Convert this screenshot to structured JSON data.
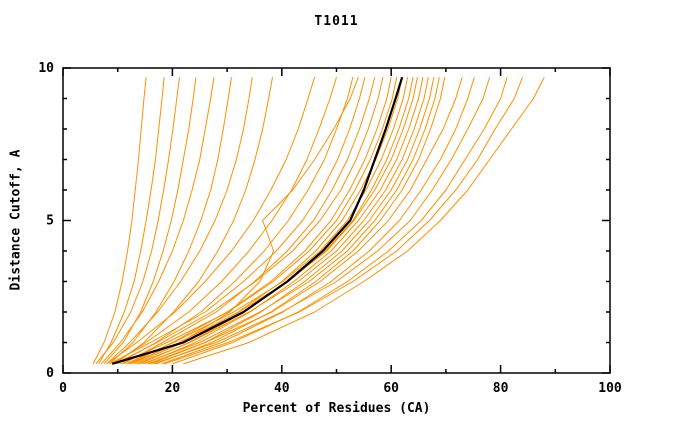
{
  "chart_data": {
    "type": "line",
    "title": "T1011",
    "xlabel": "Percent of Residues (CA)",
    "ylabel": "Distance Cutoff, A",
    "xlim": [
      0,
      100
    ],
    "ylim": [
      0,
      10
    ],
    "x_major_ticks": [
      0,
      20,
      40,
      60,
      80,
      100
    ],
    "x_minor_ticks": [
      10,
      30,
      50,
      70,
      90
    ],
    "y_major_ticks": [
      0,
      5,
      10
    ],
    "y_minor_ticks": [
      1,
      2,
      3,
      4,
      6,
      7,
      8,
      9
    ],
    "legend": "none",
    "grid": "off",
    "colors": {
      "models": "#ff9000",
      "highlight": "#000000",
      "axis": "#000000"
    },
    "y_grid": [
      0.3,
      1,
      2,
      3,
      4,
      5,
      6,
      7,
      8,
      9,
      9.7
    ],
    "series": [
      {
        "name": "model-01",
        "x": [
          5.5,
          7.5,
          9.5,
          10.8,
          11.8,
          12.6,
          13.2,
          13.8,
          14.3,
          14.8,
          15.2
        ]
      },
      {
        "name": "model-02",
        "x": [
          6.5,
          8.8,
          11.2,
          13.0,
          14.2,
          15.2,
          16.1,
          16.9,
          17.5,
          18.1,
          18.5
        ]
      },
      {
        "name": "model-03",
        "x": [
          6.0,
          9.2,
          12.4,
          14.6,
          16.2,
          17.4,
          18.4,
          19.3,
          20.1,
          20.8,
          21.3
        ]
      },
      {
        "name": "model-04",
        "x": [
          7.5,
          11.0,
          14.2,
          16.5,
          18.3,
          19.8,
          21.0,
          22.0,
          23.0,
          23.8,
          24.3
        ]
      },
      {
        "name": "model-05",
        "x": [
          7.0,
          10.5,
          14.5,
          17.5,
          20.0,
          22.0,
          23.6,
          25.0,
          26.0,
          27.0,
          27.6
        ]
      },
      {
        "name": "model-06",
        "x": [
          8.5,
          12.8,
          17.0,
          20.3,
          23.0,
          25.2,
          27.0,
          28.3,
          29.3,
          30.2,
          30.8
        ]
      },
      {
        "name": "model-07",
        "x": [
          8.0,
          12.2,
          17.3,
          21.5,
          25.0,
          27.8,
          30.0,
          31.7,
          33.0,
          34.0,
          34.6
        ]
      },
      {
        "name": "model-08",
        "x": [
          9.5,
          14.8,
          20.2,
          24.8,
          28.3,
          31.2,
          33.4,
          35.1,
          36.5,
          37.6,
          38.3
        ]
      },
      {
        "name": "model-09",
        "x": [
          8.0,
          13.5,
          20.5,
          26.0,
          30.8,
          34.8,
          38.0,
          40.8,
          43.0,
          44.8,
          46.0
        ]
      },
      {
        "name": "model-10",
        "x": [
          9.0,
          15.2,
          23.0,
          29.0,
          34.0,
          38.2,
          41.8,
          44.6,
          46.8,
          48.8,
          50.0
        ]
      },
      {
        "name": "model-11",
        "x": [
          10.0,
          17.0,
          25.2,
          31.4,
          36.8,
          41.2,
          44.8,
          47.8,
          50.0,
          52.0,
          53.0
        ]
      },
      {
        "name": "model-12",
        "x": [
          8.5,
          16.0,
          26.0,
          33.0,
          39.0,
          43.8,
          47.4,
          50.2,
          52.4,
          54.2,
          55.2
        ]
      },
      {
        "name": "model-13",
        "x": [
          11.0,
          18.2,
          28.0,
          35.0,
          41.0,
          45.8,
          49.2,
          52.0,
          54.2,
          56.0,
          57.0
        ]
      },
      {
        "name": "model-14",
        "x": [
          9.5,
          17.2,
          27.2,
          35.2,
          42.0,
          47.0,
          50.8,
          53.6,
          55.8,
          57.6,
          58.5
        ]
      },
      {
        "name": "model-15",
        "x": [
          12.0,
          20.0,
          30.0,
          38.0,
          44.2,
          49.0,
          52.4,
          55.2,
          57.4,
          59.2,
          60.0
        ]
      },
      {
        "name": "model-16",
        "x": [
          10.5,
          19.0,
          30.2,
          38.4,
          45.0,
          50.0,
          53.4,
          56.2,
          58.4,
          60.2,
          61.0
        ]
      },
      {
        "name": "model-17",
        "x": [
          13.0,
          22.0,
          32.0,
          40.0,
          46.2,
          51.0,
          54.4,
          57.2,
          59.4,
          61.2,
          62.0
        ]
      },
      {
        "name": "model-18",
        "x": [
          11.5,
          20.2,
          31.2,
          40.2,
          47.0,
          52.0,
          55.4,
          58.2,
          60.4,
          62.2,
          63.0
        ]
      },
      {
        "name": "model-19",
        "x": [
          14.0,
          23.0,
          33.2,
          41.2,
          48.0,
          53.0,
          56.4,
          59.2,
          61.4,
          63.2,
          64.0
        ]
      },
      {
        "name": "model-20",
        "x": [
          12.5,
          21.2,
          32.2,
          41.0,
          48.2,
          53.2,
          57.0,
          60.0,
          62.2,
          64.0,
          64.8
        ]
      },
      {
        "name": "model-21",
        "x": [
          15.0,
          24.2,
          34.2,
          42.2,
          49.0,
          54.0,
          58.0,
          61.0,
          63.2,
          65.0,
          65.8
        ]
      },
      {
        "name": "model-22",
        "x": [
          13.5,
          23.2,
          34.0,
          43.0,
          50.0,
          55.0,
          59.0,
          62.0,
          64.2,
          66.0,
          66.8
        ]
      },
      {
        "name": "model-23",
        "x": [
          16.0,
          26.0,
          36.2,
          44.2,
          51.0,
          56.0,
          60.0,
          63.0,
          65.2,
          67.0,
          67.8
        ]
      },
      {
        "name": "model-24",
        "x": [
          14.5,
          25.0,
          36.0,
          45.0,
          52.0,
          57.0,
          61.0,
          64.0,
          66.2,
          68.0,
          68.8
        ]
      },
      {
        "name": "model-25",
        "x": [
          17.0,
          27.2,
          38.0,
          46.2,
          53.0,
          58.0,
          62.0,
          65.0,
          67.2,
          69.0,
          69.8
        ]
      },
      {
        "name": "model-26",
        "x": [
          12.0,
          21.5,
          30.5,
          36.0,
          38.5,
          36.5,
          42.0,
          46.0,
          49.5,
          52.5,
          54.0
        ]
      },
      {
        "name": "model-27",
        "x": [
          15.5,
          26.0,
          38.2,
          47.0,
          54.0,
          59.5,
          63.5,
          66.5,
          69.5,
          71.8,
          73.0
        ]
      },
      {
        "name": "model-28",
        "x": [
          18.0,
          29.0,
          40.2,
          49.0,
          56.0,
          61.5,
          65.5,
          69.0,
          71.8,
          74.0,
          75.2
        ]
      },
      {
        "name": "model-29",
        "x": [
          16.5,
          28.0,
          40.0,
          50.0,
          57.5,
          63.5,
          67.5,
          71.0,
          74.0,
          76.8,
          78.0
        ]
      },
      {
        "name": "model-30",
        "x": [
          20.0,
          31.0,
          43.0,
          52.0,
          59.5,
          65.5,
          70.0,
          73.5,
          77.0,
          80.0,
          81.2
        ]
      },
      {
        "name": "model-31",
        "x": [
          18.5,
          30.2,
          43.2,
          53.0,
          61.0,
          67.0,
          71.8,
          75.8,
          79.0,
          82.5,
          84.0
        ]
      },
      {
        "name": "model-32",
        "x": [
          22.0,
          34.0,
          46.0,
          55.0,
          63.0,
          69.0,
          74.0,
          78.0,
          82.0,
          86.0,
          88.0
        ]
      }
    ],
    "highlight_series": {
      "name": "consensus-black",
      "x": [
        9.0,
        22.0,
        33.0,
        41.0,
        47.5,
        52.5,
        55.0,
        57.0,
        59.0,
        60.8,
        62.0
      ]
    }
  }
}
